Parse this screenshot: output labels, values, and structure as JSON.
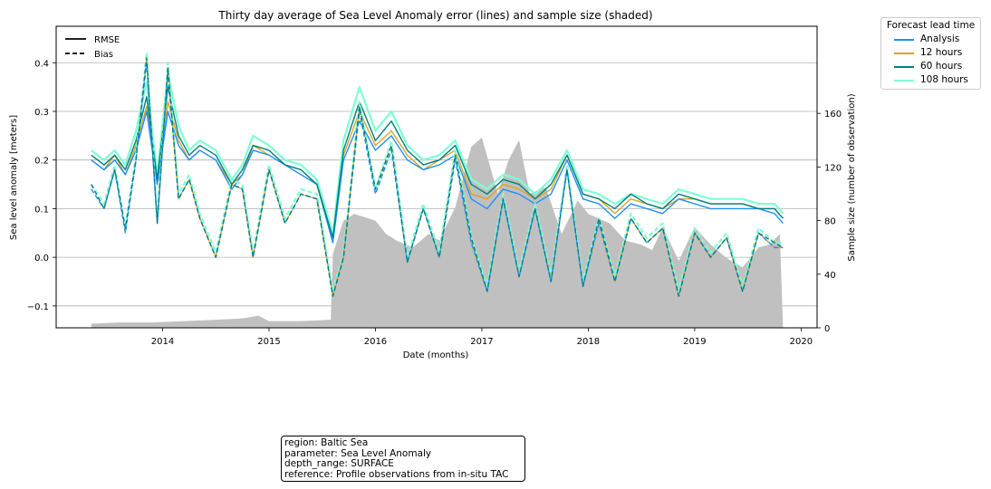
{
  "chart_data": {
    "type": "line",
    "title": "Thirty day average of Sea Level Anomaly error (lines) and sample size (shaded)",
    "xlabel": "Date (months)",
    "ylabel": "Sea level anomaly [meters]",
    "y2label": "Sample size (number of observation)",
    "xlim": [
      2013.0,
      2020.15
    ],
    "ylim": [
      -0.145,
      0.475
    ],
    "y2lim": [
      0,
      225
    ],
    "x_ticks": [
      2014,
      2015,
      2016,
      2017,
      2018,
      2019,
      2020
    ],
    "x_tick_labels": [
      "2014",
      "2015",
      "2016",
      "2017",
      "2018",
      "2019",
      "2020"
    ],
    "y_ticks": [
      -0.1,
      0.0,
      0.1,
      0.2,
      0.3,
      0.4
    ],
    "y_tick_labels": [
      "−0.1",
      "0.0",
      "0.1",
      "0.2",
      "0.3",
      "0.4"
    ],
    "y2_ticks": [
      0,
      40,
      80,
      120,
      160
    ],
    "y2_tick_labels": [
      "0",
      "40",
      "80",
      "120",
      "160"
    ],
    "grid": "horizontal",
    "style_legend": {
      "placement": "upper-left",
      "entries": [
        {
          "label": "RMSE",
          "dash": "solid"
        },
        {
          "label": "Bias",
          "dash": "dashed"
        }
      ]
    },
    "series_legend": {
      "title": "Forecast lead time",
      "placement": "outside-right",
      "entries": [
        "Analysis",
        "12 hours",
        "60 hours",
        "108 hours"
      ]
    },
    "series": [
      {
        "name": "Analysis",
        "color": "#1e90ff"
      },
      {
        "name": "12 hours",
        "color": "#daa520"
      },
      {
        "name": "60 hours",
        "color": "#008080"
      },
      {
        "name": "108 hours",
        "color": "#7fffd4"
      }
    ],
    "sample_size_color": "#c0c0c0",
    "sample_size": {
      "x": [
        2013.33,
        2013.6,
        2013.9,
        2014.2,
        2014.5,
        2014.75,
        2014.9,
        2015.0,
        2015.3,
        2015.58,
        2015.6,
        2015.7,
        2015.8,
        2016.0,
        2016.1,
        2016.2,
        2016.35,
        2016.5,
        2016.6,
        2016.75,
        2016.9,
        2017.0,
        2017.15,
        2017.25,
        2017.35,
        2017.45,
        2017.6,
        2017.75,
        2017.9,
        2018.0,
        2018.2,
        2018.35,
        2018.5,
        2018.6,
        2018.7,
        2018.85,
        2019.0,
        2019.15,
        2019.3,
        2019.45,
        2019.6,
        2019.7,
        2019.8,
        2019.83
      ],
      "y": [
        3,
        4,
        4,
        5,
        6,
        7,
        9,
        5,
        5,
        6,
        55,
        80,
        85,
        80,
        70,
        65,
        60,
        70,
        65,
        90,
        135,
        142,
        100,
        125,
        140,
        100,
        105,
        70,
        95,
        85,
        78,
        65,
        62,
        58,
        75,
        50,
        75,
        62,
        52,
        45,
        60,
        62,
        70,
        0
      ]
    },
    "rmse": {
      "x": [
        2013.33,
        2013.45,
        2013.55,
        2013.65,
        2013.75,
        2013.85,
        2013.95,
        2014.05,
        2014.15,
        2014.25,
        2014.35,
        2014.5,
        2014.65,
        2014.75,
        2014.85,
        2015.0,
        2015.15,
        2015.3,
        2015.45,
        2015.6,
        2015.7,
        2015.85,
        2016.0,
        2016.15,
        2016.3,
        2016.45,
        2016.6,
        2016.75,
        2016.9,
        2017.05,
        2017.2,
        2017.35,
        2017.5,
        2017.65,
        2017.8,
        2017.95,
        2018.1,
        2018.25,
        2018.4,
        2018.55,
        2018.7,
        2018.85,
        2019.0,
        2019.15,
        2019.3,
        2019.45,
        2019.6,
        2019.75,
        2019.83
      ],
      "analysis": [
        0.2,
        0.18,
        0.2,
        0.17,
        0.22,
        0.3,
        0.15,
        0.3,
        0.23,
        0.2,
        0.22,
        0.2,
        0.14,
        0.17,
        0.22,
        0.21,
        0.19,
        0.17,
        0.15,
        0.03,
        0.2,
        0.28,
        0.22,
        0.25,
        0.2,
        0.18,
        0.19,
        0.21,
        0.12,
        0.1,
        0.14,
        0.13,
        0.11,
        0.13,
        0.2,
        0.12,
        0.11,
        0.08,
        0.11,
        0.1,
        0.09,
        0.12,
        0.11,
        0.1,
        0.1,
        0.1,
        0.1,
        0.09,
        0.07
      ],
      "h12": [
        0.2,
        0.18,
        0.21,
        0.17,
        0.23,
        0.31,
        0.15,
        0.32,
        0.24,
        0.2,
        0.22,
        0.2,
        0.15,
        0.17,
        0.23,
        0.21,
        0.19,
        0.17,
        0.15,
        0.04,
        0.21,
        0.3,
        0.23,
        0.26,
        0.21,
        0.18,
        0.2,
        0.22,
        0.13,
        0.12,
        0.15,
        0.14,
        0.12,
        0.14,
        0.21,
        0.13,
        0.12,
        0.09,
        0.12,
        0.11,
        0.1,
        0.12,
        0.12,
        0.11,
        0.11,
        0.11,
        0.1,
        0.1,
        0.08
      ],
      "h60": [
        0.21,
        0.19,
        0.21,
        0.18,
        0.24,
        0.33,
        0.16,
        0.35,
        0.25,
        0.21,
        0.23,
        0.21,
        0.15,
        0.18,
        0.23,
        0.22,
        0.19,
        0.18,
        0.15,
        0.04,
        0.22,
        0.32,
        0.24,
        0.28,
        0.22,
        0.19,
        0.2,
        0.23,
        0.15,
        0.13,
        0.16,
        0.15,
        0.12,
        0.15,
        0.21,
        0.13,
        0.12,
        0.1,
        0.13,
        0.11,
        0.1,
        0.13,
        0.12,
        0.11,
        0.11,
        0.11,
        0.1,
        0.1,
        0.08
      ],
      "h108": [
        0.22,
        0.2,
        0.22,
        0.19,
        0.26,
        0.36,
        0.17,
        0.38,
        0.27,
        0.22,
        0.24,
        0.22,
        0.16,
        0.19,
        0.25,
        0.23,
        0.2,
        0.19,
        0.16,
        0.05,
        0.24,
        0.35,
        0.26,
        0.3,
        0.23,
        0.2,
        0.21,
        0.24,
        0.16,
        0.14,
        0.17,
        0.16,
        0.13,
        0.16,
        0.22,
        0.14,
        0.13,
        0.11,
        0.13,
        0.12,
        0.11,
        0.14,
        0.13,
        0.12,
        0.12,
        0.12,
        0.11,
        0.11,
        0.09
      ]
    },
    "bias": {
      "x": [
        2013.33,
        2013.45,
        2013.55,
        2013.65,
        2013.75,
        2013.85,
        2013.95,
        2014.05,
        2014.15,
        2014.25,
        2014.35,
        2014.5,
        2014.65,
        2014.75,
        2014.85,
        2015.0,
        2015.15,
        2015.3,
        2015.45,
        2015.6,
        2015.7,
        2015.85,
        2016.0,
        2016.15,
        2016.3,
        2016.45,
        2016.6,
        2016.75,
        2016.9,
        2017.05,
        2017.2,
        2017.35,
        2017.5,
        2017.65,
        2017.8,
        2017.95,
        2018.1,
        2018.25,
        2018.4,
        2018.55,
        2018.7,
        2018.85,
        2019.0,
        2019.15,
        2019.3,
        2019.45,
        2019.6,
        2019.75,
        2019.83
      ],
      "analysis": [
        0.14,
        0.1,
        0.18,
        0.05,
        0.2,
        0.4,
        0.07,
        0.38,
        0.12,
        0.16,
        0.08,
        0.0,
        0.15,
        0.14,
        0.0,
        0.18,
        0.07,
        0.13,
        0.12,
        -0.08,
        0.0,
        0.3,
        0.13,
        0.22,
        -0.01,
        0.1,
        0.0,
        0.2,
        0.03,
        -0.07,
        0.12,
        -0.04,
        0.1,
        -0.05,
        0.18,
        -0.06,
        0.07,
        -0.05,
        0.08,
        0.03,
        0.06,
        -0.08,
        0.05,
        0.0,
        0.04,
        -0.07,
        0.05,
        0.02,
        0.02
      ],
      "h12": [
        0.14,
        0.1,
        0.18,
        0.05,
        0.2,
        0.41,
        0.07,
        0.39,
        0.12,
        0.16,
        0.08,
        0.0,
        0.15,
        0.14,
        0.0,
        0.18,
        0.07,
        0.13,
        0.12,
        -0.08,
        0.0,
        0.31,
        0.13,
        0.23,
        -0.01,
        0.1,
        0.0,
        0.21,
        0.03,
        -0.07,
        0.12,
        -0.04,
        0.1,
        -0.05,
        0.18,
        -0.06,
        0.07,
        -0.05,
        0.08,
        0.03,
        0.06,
        -0.08,
        0.05,
        0.0,
        0.04,
        -0.07,
        0.05,
        0.02,
        0.02
      ],
      "h60": [
        0.15,
        0.1,
        0.18,
        0.06,
        0.2,
        0.41,
        0.07,
        0.39,
        0.12,
        0.16,
        0.08,
        0.0,
        0.15,
        0.14,
        0.0,
        0.18,
        0.07,
        0.13,
        0.12,
        -0.08,
        0.0,
        0.31,
        0.14,
        0.23,
        -0.01,
        0.1,
        0.0,
        0.21,
        0.04,
        -0.07,
        0.12,
        -0.04,
        0.1,
        -0.05,
        0.18,
        -0.06,
        0.08,
        -0.05,
        0.08,
        0.03,
        0.06,
        -0.08,
        0.05,
        0.0,
        0.04,
        -0.07,
        0.05,
        0.03,
        0.02
      ],
      "h108": [
        0.15,
        0.11,
        0.19,
        0.06,
        0.21,
        0.42,
        0.08,
        0.4,
        0.13,
        0.17,
        0.09,
        0.01,
        0.16,
        0.15,
        0.01,
        0.19,
        0.08,
        0.14,
        0.13,
        -0.07,
        0.01,
        0.32,
        0.14,
        0.24,
        0.0,
        0.11,
        0.01,
        0.22,
        0.04,
        -0.06,
        0.13,
        -0.03,
        0.11,
        -0.04,
        0.19,
        -0.05,
        0.08,
        -0.04,
        0.09,
        0.04,
        0.07,
        -0.07,
        0.06,
        0.01,
        0.05,
        -0.06,
        0.06,
        0.03,
        0.03
      ]
    }
  },
  "info": {
    "region": "region: Baltic Sea",
    "parameter": "parameter: Sea Level Anomaly",
    "depth_range": "depth_range: SURFACE",
    "reference": "reference: Profile observations from in-situ TAC"
  }
}
